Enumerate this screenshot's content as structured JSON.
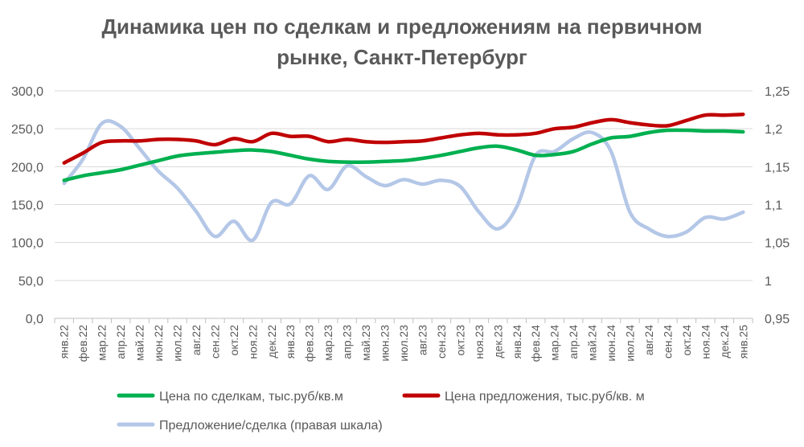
{
  "chart_data": {
    "type": "line",
    "title_line1": "Динамика цен по сделкам и предложениям на первичном",
    "title_line2": "рынке, Санкт-Петербург",
    "categories": [
      "янв.22",
      "фев.22",
      "мар.22",
      "апр.22",
      "май.22",
      "июн.22",
      "июл.22",
      "авг.22",
      "сен.22",
      "окт.22",
      "ноя.22",
      "дек.22",
      "янв.23",
      "фев.23",
      "мар.23",
      "апр.23",
      "май.23",
      "июн.23",
      "июл.23",
      "авг.23",
      "сен.23",
      "окт.23",
      "ноя.23",
      "дек.23",
      "янв.24",
      "фев.24",
      "мар.24",
      "апр.24",
      "май.24",
      "июн.24",
      "июл.24",
      "авг.24",
      "сен.24",
      "окт.24",
      "ноя.24",
      "дек.24",
      "янв.25"
    ],
    "y_left": {
      "min": 0,
      "max": 300,
      "ticks": [
        "0,0",
        "50,0",
        "100,0",
        "150,0",
        "200,0",
        "250,0",
        "300,0"
      ]
    },
    "y_right": {
      "min": 0.95,
      "max": 1.25,
      "ticks": [
        "0,95",
        "1",
        "1,05",
        "1,1",
        "1,15",
        "1,2",
        "1,25"
      ]
    },
    "grid": true,
    "legend_position": "bottom",
    "series": [
      {
        "name": "Цена по сделкам, тыс.руб/кв.м",
        "axis": "left",
        "color": "#00B050",
        "values": [
          182,
          188,
          192,
          196,
          202,
          208,
          214,
          217,
          219,
          221,
          222,
          220,
          215,
          210,
          207,
          206,
          206,
          207,
          208,
          211,
          215,
          220,
          225,
          227,
          222,
          215,
          216,
          220,
          230,
          238,
          240,
          245,
          248,
          248,
          247,
          247,
          246
        ]
      },
      {
        "name": "Цена предложения, тыс.руб/кв. м",
        "axis": "left",
        "color": "#C00000",
        "values": [
          205,
          218,
          232,
          234,
          234,
          236,
          236,
          234,
          229,
          237,
          233,
          244,
          240,
          240,
          233,
          236,
          233,
          232,
          233,
          234,
          238,
          242,
          244,
          242,
          242,
          244,
          250,
          252,
          258,
          262,
          258,
          255,
          254,
          261,
          268,
          268,
          269
        ]
      },
      {
        "name": "Предложение/сделка (правая шкала)",
        "axis": "right",
        "color": "#B4C7E7",
        "values": [
          1.128,
          1.16,
          1.207,
          1.203,
          1.174,
          1.144,
          1.122,
          1.091,
          1.058,
          1.078,
          1.053,
          1.103,
          1.101,
          1.138,
          1.12,
          1.151,
          1.137,
          1.125,
          1.133,
          1.127,
          1.132,
          1.124,
          1.09,
          1.068,
          1.097,
          1.165,
          1.17,
          1.187,
          1.195,
          1.17,
          1.09,
          1.068,
          1.058,
          1.064,
          1.083,
          1.081,
          1.09
        ]
      }
    ]
  }
}
